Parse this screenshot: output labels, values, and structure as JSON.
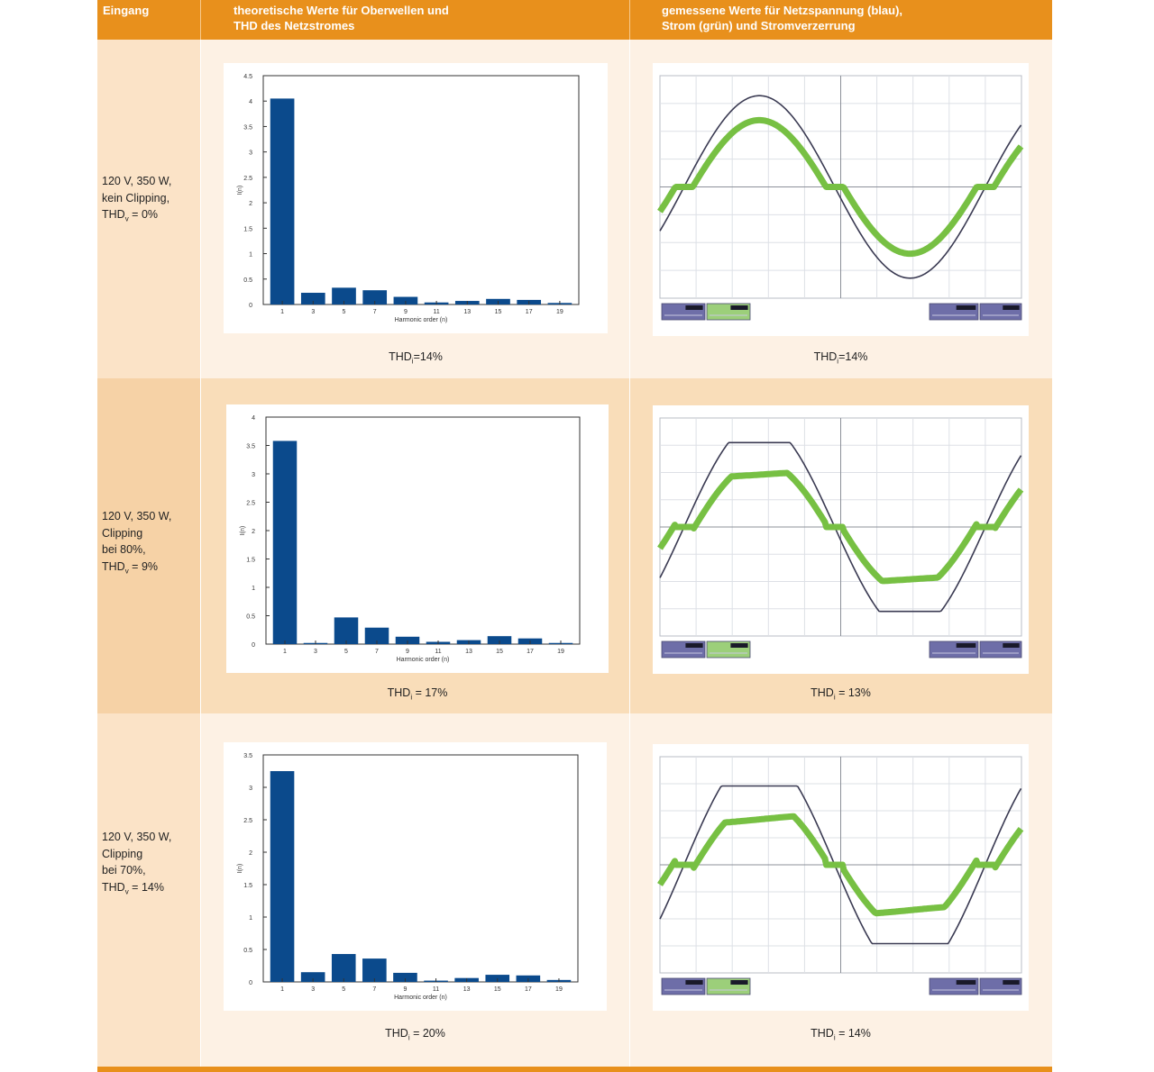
{
  "header": {
    "col1": "Eingang",
    "col2_line1": "theoretische Werte für Oberwellen und",
    "col2_line2": "THD des Netzstromes",
    "col3_line1": "gemessene Werte für Netzspannung (blau),",
    "col3_line2": "Strom (grün) und Stromverzerrung"
  },
  "rows": [
    {
      "label": {
        "l1": "120 V, 350 W,",
        "l2": "kein Clipping,",
        "l3": "THD",
        "l3_sub": "v",
        "l3_rest": " = 0%",
        "l4": ""
      },
      "theory_thd": {
        "base": "THD",
        "sub": "i",
        "value": "=14%"
      },
      "measured_thd": {
        "base": "THD",
        "sub": "i",
        "value": "=14%"
      }
    },
    {
      "label": {
        "l1": "120 V, 350 W,",
        "l2": "Clipping",
        "l3": "bei 80%,",
        "l4": "THD",
        "l4_sub": "v",
        "l4_rest": " = 9%"
      },
      "theory_thd": {
        "base": "THD",
        "sub": "i",
        "value": " = 17%"
      },
      "measured_thd": {
        "base": "THD",
        "sub": "i",
        "value": " = 13%"
      }
    },
    {
      "label": {
        "l1": "120 V, 350 W,",
        "l2": "Clipping",
        "l3": "bei 70%,",
        "l4": "THD",
        "l4_sub": "v",
        "l4_rest": " = 14%"
      },
      "theory_thd": {
        "base": "THD",
        "sub": "i",
        "value": " = 20%"
      },
      "measured_thd": {
        "base": "THD",
        "sub": "i",
        "value": " = 14%"
      }
    }
  ],
  "chart_data": [
    {
      "type": "bar",
      "categories": [
        "1",
        "3",
        "5",
        "7",
        "9",
        "11",
        "13",
        "15",
        "17",
        "19"
      ],
      "values": [
        4.05,
        0.23,
        0.33,
        0.28,
        0.15,
        0.04,
        0.07,
        0.11,
        0.09,
        0.03
      ],
      "ylim": [
        0,
        4.5
      ],
      "yticks": [
        0,
        0.5,
        1,
        1.5,
        2,
        2.5,
        3,
        3.5,
        4,
        4.5
      ],
      "xlabel": "Harmonic order (n)",
      "ylabel": "I(n)",
      "color": "#0b4a8c"
    },
    {
      "type": "line",
      "title": "",
      "clip": 1.0,
      "series_colors": {
        "voltage": "#3a3a52",
        "current": "#77c043"
      }
    },
    {
      "type": "bar",
      "categories": [
        "1",
        "3",
        "5",
        "7",
        "9",
        "11",
        "13",
        "15",
        "17",
        "19"
      ],
      "values": [
        3.58,
        0.02,
        0.47,
        0.29,
        0.13,
        0.04,
        0.07,
        0.14,
        0.1,
        0.02
      ],
      "ylim": [
        0,
        4
      ],
      "yticks": [
        0,
        0.5,
        1,
        1.5,
        2,
        2.5,
        3,
        3.5,
        4
      ],
      "xlabel": "Harmonic order (n)",
      "ylabel": "I(n)",
      "color": "#0b4a8c"
    },
    {
      "type": "line",
      "title": "",
      "clip": 0.8,
      "series_colors": {
        "voltage": "#3a3a52",
        "current": "#77c043"
      }
    },
    {
      "type": "bar",
      "categories": [
        "1",
        "3",
        "5",
        "7",
        "9",
        "11",
        "13",
        "15",
        "17",
        "19"
      ],
      "values": [
        3.25,
        0.15,
        0.43,
        0.36,
        0.14,
        0.02,
        0.06,
        0.11,
        0.1,
        0.03
      ],
      "ylim": [
        0,
        3.5
      ],
      "yticks": [
        0,
        0.5,
        1,
        1.5,
        2,
        2.5,
        3,
        3.5
      ],
      "xlabel": "Harmonic order (n)",
      "ylabel": "I(n)",
      "color": "#0b4a8c"
    },
    {
      "type": "line",
      "title": "",
      "clip": 0.7,
      "series_colors": {
        "voltage": "#3a3a52",
        "current": "#77c043"
      }
    }
  ]
}
